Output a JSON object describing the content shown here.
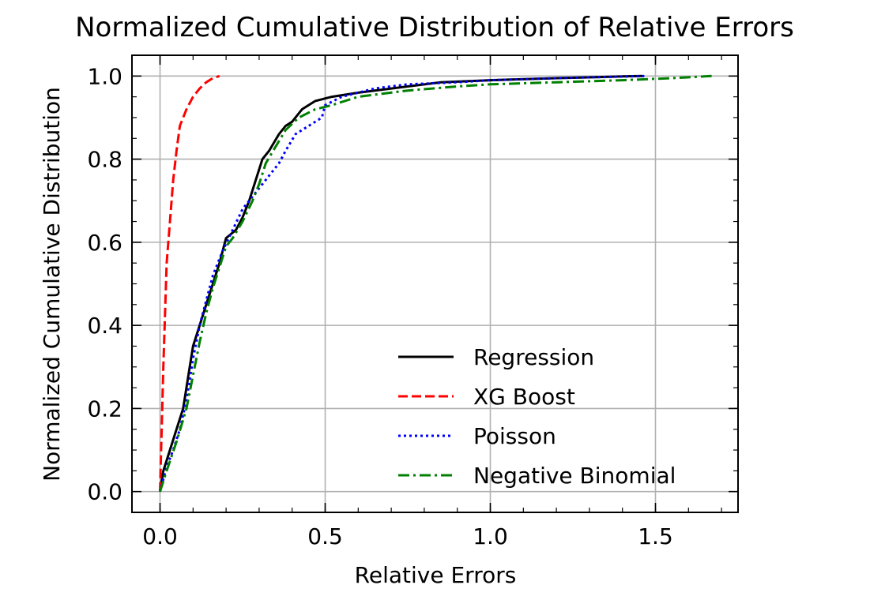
{
  "chart_data": {
    "type": "line",
    "title": "Normalized Cumulative Distribution of Relative Errors",
    "xlabel": "Relative Errors",
    "ylabel": "Normalized Cumulative Distribution",
    "xlim": [
      -0.085,
      1.75
    ],
    "ylim": [
      -0.05,
      1.05
    ],
    "xticks": [
      0.0,
      0.5,
      1.0,
      1.5
    ],
    "xtick_labels": [
      "0.0",
      "0.5",
      "1.0",
      "1.5"
    ],
    "yticks": [
      0.0,
      0.2,
      0.4,
      0.6,
      0.8,
      1.0
    ],
    "ytick_labels": [
      "0.0",
      "0.2",
      "0.4",
      "0.6",
      "0.8",
      "1.0"
    ],
    "grid": true,
    "legend_position": "lower-right",
    "series": [
      {
        "name": "Regression",
        "color": "#000000",
        "dash": "solid",
        "points": [
          [
            0.0,
            0.0
          ],
          [
            0.01,
            0.05
          ],
          [
            0.03,
            0.1
          ],
          [
            0.05,
            0.15
          ],
          [
            0.07,
            0.2
          ],
          [
            0.09,
            0.3
          ],
          [
            0.1,
            0.35
          ],
          [
            0.12,
            0.4
          ],
          [
            0.14,
            0.45
          ],
          [
            0.16,
            0.5
          ],
          [
            0.18,
            0.55
          ],
          [
            0.19,
            0.58
          ],
          [
            0.2,
            0.61
          ],
          [
            0.23,
            0.63
          ],
          [
            0.25,
            0.66
          ],
          [
            0.27,
            0.7
          ],
          [
            0.29,
            0.75
          ],
          [
            0.31,
            0.8
          ],
          [
            0.33,
            0.82
          ],
          [
            0.36,
            0.86
          ],
          [
            0.38,
            0.88
          ],
          [
            0.4,
            0.89
          ],
          [
            0.43,
            0.92
          ],
          [
            0.47,
            0.94
          ],
          [
            0.52,
            0.95
          ],
          [
            0.6,
            0.96
          ],
          [
            0.7,
            0.97
          ],
          [
            0.85,
            0.985
          ],
          [
            1.0,
            0.99
          ],
          [
            1.2,
            0.995
          ],
          [
            1.4,
            0.999
          ],
          [
            1.46,
            1.0
          ]
        ]
      },
      {
        "name": "XG Boost",
        "color": "#ff0000",
        "dash": "dashed",
        "points": [
          [
            0.0,
            0.0
          ],
          [
            0.01,
            0.3
          ],
          [
            0.02,
            0.55
          ],
          [
            0.03,
            0.65
          ],
          [
            0.04,
            0.75
          ],
          [
            0.05,
            0.82
          ],
          [
            0.06,
            0.88
          ],
          [
            0.08,
            0.92
          ],
          [
            0.1,
            0.95
          ],
          [
            0.12,
            0.97
          ],
          [
            0.14,
            0.985
          ],
          [
            0.16,
            0.995
          ],
          [
            0.18,
            1.0
          ]
        ]
      },
      {
        "name": "Poisson",
        "color": "#0000ff",
        "dash": "dotted",
        "points": [
          [
            0.0,
            0.0
          ],
          [
            0.02,
            0.06
          ],
          [
            0.04,
            0.1
          ],
          [
            0.06,
            0.15
          ],
          [
            0.08,
            0.22
          ],
          [
            0.1,
            0.32
          ],
          [
            0.12,
            0.4
          ],
          [
            0.14,
            0.46
          ],
          [
            0.16,
            0.52
          ],
          [
            0.19,
            0.58
          ],
          [
            0.22,
            0.63
          ],
          [
            0.25,
            0.68
          ],
          [
            0.29,
            0.72
          ],
          [
            0.32,
            0.75
          ],
          [
            0.36,
            0.79
          ],
          [
            0.38,
            0.82
          ],
          [
            0.41,
            0.86
          ],
          [
            0.45,
            0.88
          ],
          [
            0.49,
            0.9
          ],
          [
            0.5,
            0.93
          ],
          [
            0.55,
            0.95
          ],
          [
            0.65,
            0.97
          ],
          [
            0.75,
            0.98
          ],
          [
            0.9,
            0.985
          ],
          [
            1.0,
            0.99
          ],
          [
            1.2,
            0.995
          ],
          [
            1.47,
            1.0
          ]
        ]
      },
      {
        "name": "Negative Binomial",
        "color": "#008000",
        "dash": "dashdot",
        "points": [
          [
            0.0,
            0.0
          ],
          [
            0.02,
            0.05
          ],
          [
            0.05,
            0.12
          ],
          [
            0.08,
            0.2
          ],
          [
            0.1,
            0.28
          ],
          [
            0.12,
            0.36
          ],
          [
            0.14,
            0.43
          ],
          [
            0.16,
            0.49
          ],
          [
            0.18,
            0.54
          ],
          [
            0.2,
            0.59
          ],
          [
            0.22,
            0.61
          ],
          [
            0.25,
            0.65
          ],
          [
            0.28,
            0.7
          ],
          [
            0.3,
            0.74
          ],
          [
            0.32,
            0.79
          ],
          [
            0.35,
            0.83
          ],
          [
            0.38,
            0.87
          ],
          [
            0.42,
            0.9
          ],
          [
            0.47,
            0.92
          ],
          [
            0.52,
            0.93
          ],
          [
            0.6,
            0.95
          ],
          [
            0.75,
            0.965
          ],
          [
            0.9,
            0.975
          ],
          [
            1.0,
            0.98
          ],
          [
            1.2,
            0.985
          ],
          [
            1.4,
            0.99
          ],
          [
            1.55,
            0.995
          ],
          [
            1.67,
            1.0
          ]
        ]
      }
    ]
  }
}
